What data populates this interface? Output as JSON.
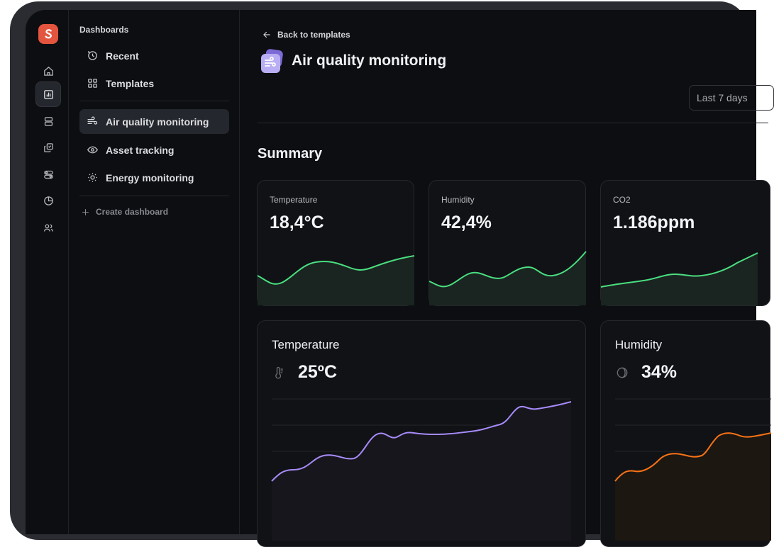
{
  "sidebar": {
    "heading": "Dashboards",
    "nav": [
      {
        "label": "Recent",
        "icon": "clock-icon"
      },
      {
        "label": "Templates",
        "icon": "grid-icon"
      }
    ],
    "dashboards": [
      {
        "label": "Air quality monitoring",
        "icon": "wind-icon",
        "active": true
      },
      {
        "label": "Asset tracking",
        "icon": "eye-icon"
      },
      {
        "label": "Energy monitoring",
        "icon": "sun-icon"
      }
    ],
    "create_label": "Create dashboard"
  },
  "rail": {
    "items": [
      "home-icon",
      "bar-chart-icon",
      "database-icon",
      "copy-check-icon",
      "toggles-icon",
      "pie-chart-icon",
      "users-icon"
    ],
    "active": "bar-chart-icon"
  },
  "header": {
    "back_label": "Back to templates",
    "title": "Air quality monitoring",
    "date_range": "Last 7 days"
  },
  "summary": {
    "heading": "Summary",
    "cards": [
      {
        "label": "Temperature",
        "value": "18,4°C"
      },
      {
        "label": "Humidity",
        "value": "42,4%"
      },
      {
        "label": "CO2",
        "value": "1.186ppm"
      }
    ]
  },
  "details": [
    {
      "label": "Temperature",
      "value": "25ºC",
      "icon": "thermometer-icon",
      "color": "#a78bfa"
    },
    {
      "label": "Humidity",
      "value": "34%",
      "icon": "moon-phase-icon",
      "color": "#f97316"
    }
  ],
  "colors": {
    "accent_green": "#4ade80",
    "accent_purple": "#a78bfa",
    "accent_orange": "#f97316",
    "logo": "#e4553f"
  }
}
